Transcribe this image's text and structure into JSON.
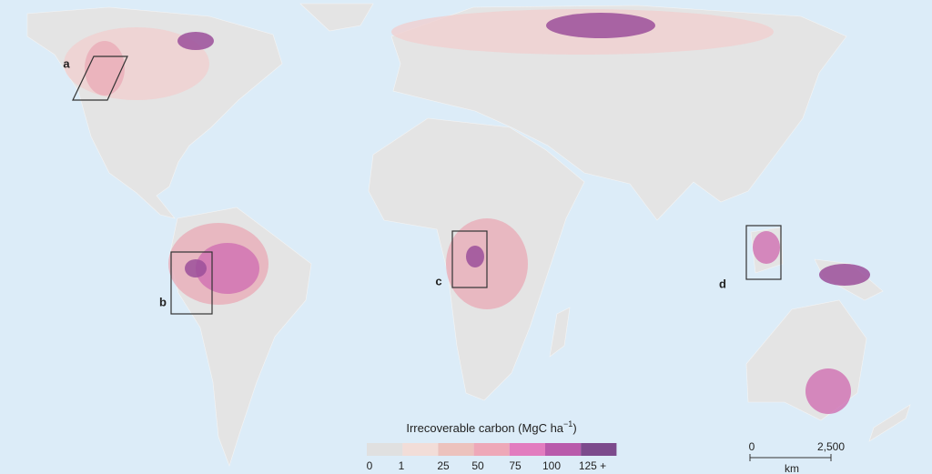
{
  "map": {
    "panel_labels": [
      "a",
      "b",
      "c",
      "d"
    ],
    "legend": {
      "title": "Irrecoverable carbon (MgC ha",
      "title_superscript": "−1",
      "title_suffix": ")",
      "colors": [
        "#e0e0e0",
        "#f2ddd8",
        "#ecc2bd",
        "#eea8b8",
        "#e27cbf",
        "#b95aab",
        "#7c4a8c"
      ],
      "labels": [
        "0",
        "1",
        "25",
        "50",
        "75",
        "100",
        "125 +"
      ]
    },
    "scale_bar": {
      "start_label": "0",
      "end_label": "2,500",
      "unit": "km"
    }
  }
}
